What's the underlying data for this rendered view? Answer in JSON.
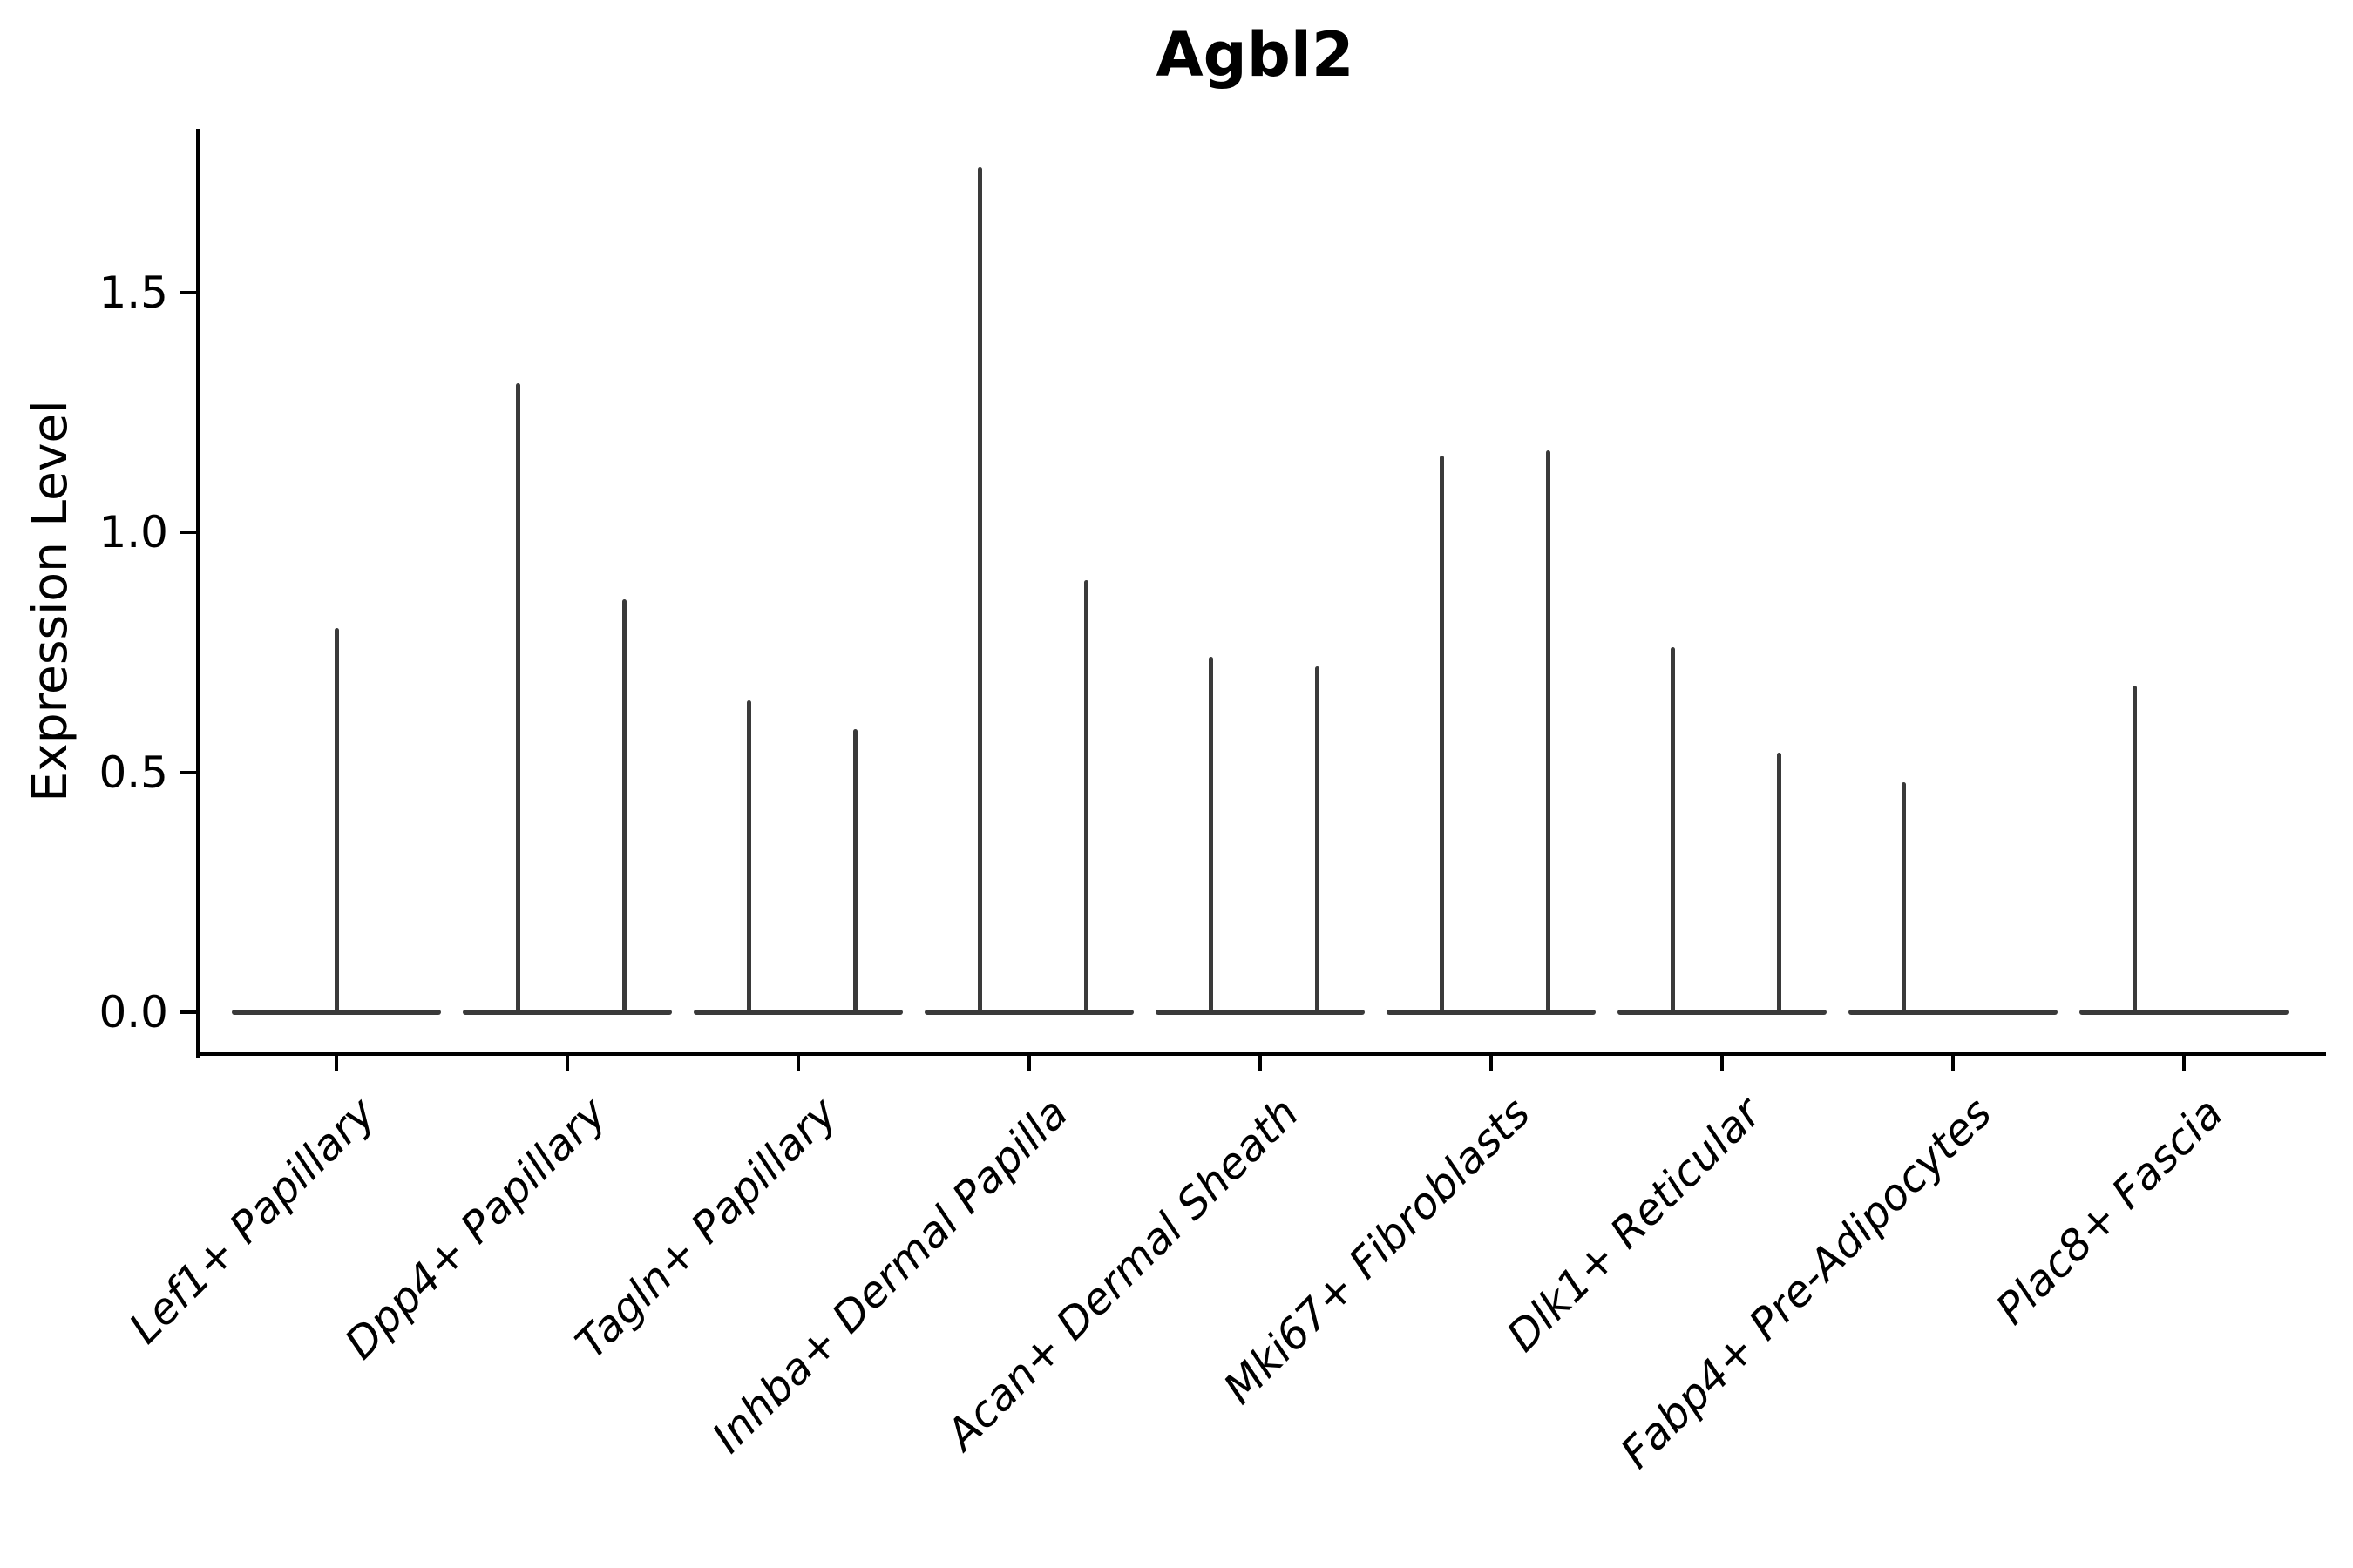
{
  "figure": {
    "title": "Agbl2"
  },
  "chart_data": {
    "type": "violin",
    "title": "Agbl2",
    "xlabel": "",
    "ylabel": "Expression Level",
    "categories": [
      "Lef1+ Papillary",
      "Dpp4+ Papillary",
      "Tagln+ Papillary",
      "Inhba+ Dermal Papilla",
      "Acan+ Dermal Sheath",
      "Mki67+ Fibroblasts",
      "Dlk1+ Reticular",
      "Fabp4+ Pre-Adipocytes",
      "Plac8+ Fascia"
    ],
    "violins": [
      {
        "category": "Lef1+ Papillary",
        "spikes": [
          {
            "position": "center",
            "max": 0.8
          }
        ]
      },
      {
        "category": "Dpp4+ Papillary",
        "spikes": [
          {
            "position": "left",
            "max": 1.31
          },
          {
            "position": "right",
            "max": 0.86
          }
        ]
      },
      {
        "category": "Tagln+ Papillary",
        "spikes": [
          {
            "position": "left",
            "max": 0.65
          },
          {
            "position": "right",
            "max": 0.59
          }
        ]
      },
      {
        "category": "Inhba+ Dermal Papilla",
        "spikes": [
          {
            "position": "left",
            "max": 1.76
          },
          {
            "position": "right",
            "max": 0.9
          }
        ]
      },
      {
        "category": "Acan+ Dermal Sheath",
        "spikes": [
          {
            "position": "left",
            "max": 0.74
          },
          {
            "position": "right",
            "max": 0.72
          }
        ]
      },
      {
        "category": "Mki67+ Fibroblasts",
        "spikes": [
          {
            "position": "left",
            "max": 1.16
          },
          {
            "position": "right",
            "max": 1.17
          }
        ]
      },
      {
        "category": "Dlk1+ Reticular",
        "spikes": [
          {
            "position": "left",
            "max": 0.76
          },
          {
            "position": "right",
            "max": 0.54
          }
        ]
      },
      {
        "category": "Fabp4+ Pre-Adipocytes",
        "spikes": [
          {
            "position": "left",
            "max": 0.48
          }
        ]
      },
      {
        "category": "Plac8+ Fascia",
        "spikes": [
          {
            "position": "left",
            "max": 0.68
          }
        ]
      }
    ],
    "baseline_value": 0.0,
    "ytick_labels": [
      "0.0",
      "0.5",
      "1.0",
      "1.5"
    ],
    "ytick_values": [
      0.0,
      0.5,
      1.0,
      1.5
    ],
    "ylim": [
      -0.09,
      1.84
    ],
    "grid": false,
    "legend_position": "none",
    "colors": {
      "violin": "#3a3a3a",
      "axis": "#000000",
      "text": "#000000",
      "background": "#ffffff"
    }
  }
}
